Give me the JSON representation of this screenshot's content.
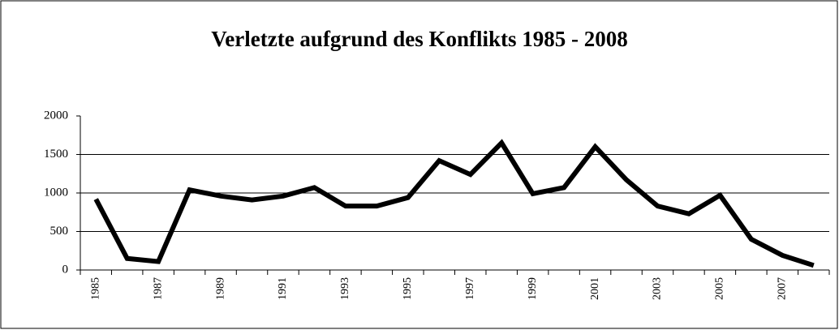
{
  "chart_data": {
    "type": "line",
    "title": "Verletzte aufgrund des Konflikts 1985 - 2008",
    "categories": [
      "1985",
      null,
      "1987",
      null,
      "1989",
      null,
      "1991",
      null,
      "1993",
      null,
      "1995",
      null,
      "1997",
      null,
      "1999",
      null,
      "2001",
      null,
      "2003",
      null,
      "2005",
      null,
      "2007",
      null
    ],
    "series": [
      {
        "color": "#000000",
        "values": [
          920,
          150,
          110,
          1040,
          960,
          910,
          960,
          1070,
          830,
          830,
          940,
          1420,
          1240,
          1650,
          990,
          1070,
          1600,
          1170,
          830,
          730,
          970,
          400,
          190,
          60
        ]
      }
    ],
    "ylim": [
      0,
      2000
    ],
    "yticks": [
      0,
      500,
      1000,
      1500,
      2000
    ],
    "grid": true
  }
}
